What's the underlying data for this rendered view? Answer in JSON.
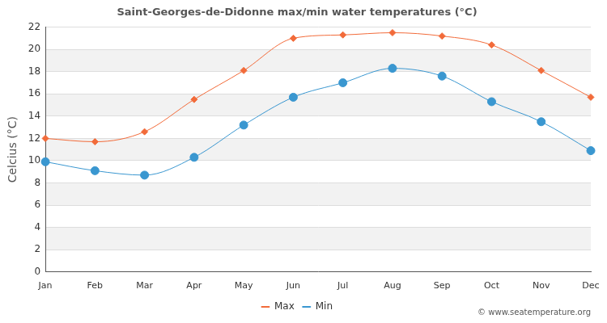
{
  "chart_data": {
    "type": "line",
    "title": "Saint-Georges-de-Didonne max/min water temperatures (°C)",
    "y_label": "Celcius (°C)",
    "annotations": [
      "© www.seatemperature.org"
    ],
    "categories": [
      "Jan",
      "Feb",
      "Mar",
      "Apr",
      "May",
      "Jun",
      "Jul",
      "Aug",
      "Sep",
      "Oct",
      "Nov",
      "Dec"
    ],
    "series": [
      {
        "name": "Max",
        "color": "#f26b3a",
        "marker": "diamond",
        "values": [
          12.0,
          11.7,
          12.6,
          15.5,
          18.1,
          21.0,
          21.3,
          21.5,
          21.2,
          20.4,
          18.1,
          15.7
        ]
      },
      {
        "name": "Min",
        "color": "#3a97d0",
        "marker": "circle",
        "values": [
          9.9,
          9.1,
          8.7,
          10.3,
          13.2,
          15.7,
          17.0,
          18.3,
          17.6,
          15.3,
          13.5,
          10.9
        ]
      }
    ],
    "ylim": [
      0,
      22
    ],
    "yticks": [
      0,
      2,
      4,
      6,
      8,
      10,
      12,
      14,
      16,
      18,
      20,
      22
    ],
    "grid": true,
    "legend": "bottom"
  }
}
